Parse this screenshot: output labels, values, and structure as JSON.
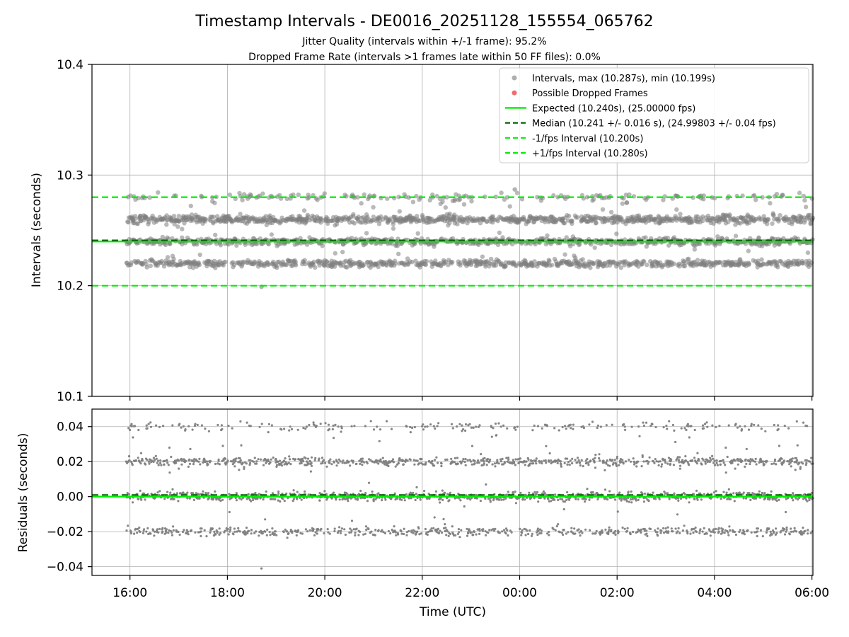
{
  "chart_data": {
    "title": "Timestamp Intervals - DE0016_20251128_155554_065762",
    "subtitles": [
      "Jitter Quality (intervals within +/-1 frame): 95.2%",
      "Dropped Frame Rate (intervals >1 frames late within 50 FF files): 0.0%"
    ],
    "xlabel": "Time (UTC)",
    "x_ticks": [
      "16:00",
      "18:00",
      "20:00",
      "22:00",
      "00:00",
      "02:00",
      "04:00",
      "06:00"
    ],
    "x_range_hours": [
      15.22,
      30.02
    ],
    "data_start_hours": 15.92,
    "data_end_hours": 30.02,
    "colors": {
      "intervals": "#808080",
      "dropped": "#f05050",
      "expected": "#00ee00",
      "median": "#006400",
      "bounds": "#00ee00",
      "grid": "#b0b0b0"
    },
    "panels": [
      {
        "id": "intervals",
        "type": "scatter",
        "ylabel": "Intervals (seconds)",
        "ylim": [
          10.1,
          10.4
        ],
        "y_ticks": [
          "10.1",
          "10.2",
          "10.3",
          "10.4"
        ],
        "grid": true,
        "legend_position": "upper-right",
        "legend": [
          {
            "label": "Intervals, max (10.287s), min (10.199s)",
            "marker": "point",
            "color": "#a0a0a0"
          },
          {
            "label": "Possible Dropped Frames",
            "marker": "point",
            "color": "#f05050"
          },
          {
            "label": "Expected (10.240s), (25.00000 fps)",
            "marker": "solid",
            "color": "#00ee00"
          },
          {
            "label": "Median (10.241 +/- 0.016 s), (24.99803 +/- 0.04 fps)",
            "marker": "dashed",
            "color": "#006400"
          },
          {
            "label": "-1/fps Interval (10.200s)",
            "marker": "dashed",
            "color": "#00ee00"
          },
          {
            "label": "+1/fps Interval (10.280s)",
            "marker": "dashed",
            "color": "#00ee00"
          }
        ],
        "reference_lines": {
          "expected": 10.24,
          "median": 10.241,
          "minus_one_frame": 10.2,
          "plus_one_frame": 10.28
        },
        "value_clusters": [
          {
            "value": 10.22,
            "share": 0.28,
            "spread": 0.0015
          },
          {
            "value": 10.24,
            "share": 0.3,
            "spread": 0.0015
          },
          {
            "value": 10.26,
            "share": 0.36,
            "spread": 0.0018
          },
          {
            "value": 10.28,
            "share": 0.06,
            "spread": 0.0015
          }
        ],
        "max_interval": 10.287,
        "min_interval": 10.199,
        "dropped_count": 0
      },
      {
        "id": "residuals",
        "type": "scatter",
        "ylabel": "Residuals (seconds)",
        "ylim": [
          -0.045,
          0.05
        ],
        "y_ticks": [
          "−0.04",
          "−0.02",
          "0.00",
          "0.02",
          "0.04"
        ],
        "y_tick_values": [
          -0.04,
          -0.02,
          0.0,
          0.02,
          0.04
        ],
        "grid": true,
        "reference_lines": {
          "zero": 0.0,
          "median_offset": 0.001
        },
        "value_clusters": [
          {
            "value": -0.02,
            "share": 0.2,
            "spread": 0.0012
          },
          {
            "value": 0.0,
            "share": 0.38,
            "spread": 0.0012
          },
          {
            "value": 0.02,
            "share": 0.3,
            "spread": 0.0012
          },
          {
            "value": 0.04,
            "share": 0.08,
            "spread": 0.0012
          }
        ],
        "min_residual": -0.041,
        "max_residual": 0.047
      }
    ]
  }
}
